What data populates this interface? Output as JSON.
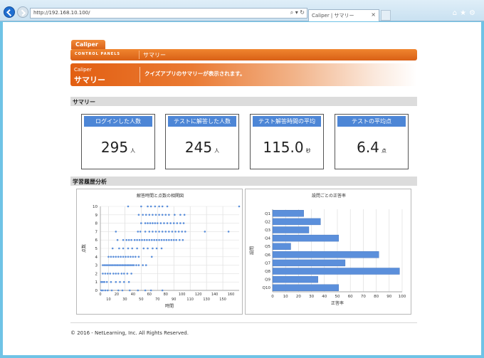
{
  "browser": {
    "address": "http://192.168.10.100/",
    "tab_title": "Caliper | サマリー"
  },
  "brand": "Caliper",
  "panel_bar": {
    "control_panels": "CONTROL PANELS",
    "current": "サマリー"
  },
  "hero": {
    "app": "Caliper",
    "title": "サマリー",
    "description": "クイズアプリのサマリーが表示されます。"
  },
  "sections": {
    "summary": "サマリー",
    "history": "学習履歴分析"
  },
  "cards": [
    {
      "label": "ログインした人数",
      "value": "295",
      "unit": "人"
    },
    {
      "label": "テストに解答した人数",
      "value": "245",
      "unit": "人"
    },
    {
      "label": "テスト解答時間の平均",
      "value": "115.0",
      "unit": "秒"
    },
    {
      "label": "テストの平均点",
      "value": "6.4",
      "unit": "点"
    }
  ],
  "colors": {
    "accent": "#e8731f",
    "series": "#5b8fdb",
    "card_head": "#4d86d6"
  },
  "chart_data": [
    {
      "type": "scatter",
      "title": "解答時間と点数の相関図",
      "xlabel": "時間",
      "ylabel": "点数",
      "xlim": [
        0,
        170
      ],
      "ylim": [
        0,
        10
      ],
      "x_ticks": [
        10,
        30,
        50,
        70,
        90,
        110,
        130,
        150
      ],
      "y_ticks": [
        0,
        1,
        2,
        3,
        4,
        5,
        6,
        7,
        8,
        9,
        10
      ],
      "x_tick_labels_secondary": [
        0,
        20,
        40,
        60,
        80,
        100,
        120,
        140,
        160
      ],
      "points": [
        [
          1,
          0
        ],
        [
          3,
          0
        ],
        [
          6,
          0
        ],
        [
          9,
          0
        ],
        [
          14,
          0
        ],
        [
          22,
          0
        ],
        [
          27,
          0
        ],
        [
          36,
          0
        ],
        [
          46,
          0
        ],
        [
          55,
          0
        ],
        [
          62,
          0
        ],
        [
          76,
          0
        ],
        [
          1,
          1
        ],
        [
          3,
          1
        ],
        [
          5,
          1
        ],
        [
          8,
          1
        ],
        [
          13,
          1
        ],
        [
          19,
          1
        ],
        [
          24,
          1
        ],
        [
          29,
          1
        ],
        [
          35,
          1
        ],
        [
          3,
          2
        ],
        [
          6,
          2
        ],
        [
          9,
          2
        ],
        [
          12,
          2
        ],
        [
          16,
          2
        ],
        [
          19,
          2
        ],
        [
          22,
          2
        ],
        [
          26,
          2
        ],
        [
          29,
          2
        ],
        [
          33,
          2
        ],
        [
          38,
          2
        ],
        [
          3,
          3
        ],
        [
          5,
          3
        ],
        [
          7,
          3
        ],
        [
          9,
          3
        ],
        [
          11,
          3
        ],
        [
          13,
          3
        ],
        [
          15,
          3
        ],
        [
          17,
          3
        ],
        [
          19,
          3
        ],
        [
          21,
          3
        ],
        [
          23,
          3
        ],
        [
          25,
          3
        ],
        [
          27,
          3
        ],
        [
          29,
          3
        ],
        [
          31,
          3
        ],
        [
          33,
          3
        ],
        [
          35,
          3
        ],
        [
          37,
          3
        ],
        [
          39,
          3
        ],
        [
          41,
          3
        ],
        [
          44,
          3
        ],
        [
          47,
          3
        ],
        [
          52,
          3
        ],
        [
          56,
          3
        ],
        [
          10,
          4
        ],
        [
          13,
          4
        ],
        [
          16,
          4
        ],
        [
          19,
          4
        ],
        [
          22,
          4
        ],
        [
          25,
          4
        ],
        [
          28,
          4
        ],
        [
          31,
          4
        ],
        [
          34,
          4
        ],
        [
          37,
          4
        ],
        [
          40,
          4
        ],
        [
          43,
          4
        ],
        [
          47,
          4
        ],
        [
          63,
          4
        ],
        [
          15,
          5
        ],
        [
          23,
          5
        ],
        [
          28,
          5
        ],
        [
          34,
          5
        ],
        [
          39,
          5
        ],
        [
          45,
          5
        ],
        [
          53,
          5
        ],
        [
          58,
          5
        ],
        [
          64,
          5
        ],
        [
          69,
          5
        ],
        [
          75,
          5
        ],
        [
          21,
          6
        ],
        [
          28,
          6
        ],
        [
          32,
          6
        ],
        [
          35,
          6
        ],
        [
          38,
          6
        ],
        [
          42,
          6
        ],
        [
          45,
          6
        ],
        [
          48,
          6
        ],
        [
          51,
          6
        ],
        [
          54,
          6
        ],
        [
          57,
          6
        ],
        [
          60,
          6
        ],
        [
          63,
          6
        ],
        [
          66,
          6
        ],
        [
          69,
          6
        ],
        [
          72,
          6
        ],
        [
          75,
          6
        ],
        [
          78,
          6
        ],
        [
          81,
          6
        ],
        [
          84,
          6
        ],
        [
          87,
          6
        ],
        [
          90,
          6
        ],
        [
          93,
          6
        ],
        [
          97,
          6
        ],
        [
          101,
          6
        ],
        [
          19,
          7
        ],
        [
          46,
          7
        ],
        [
          49,
          7
        ],
        [
          55,
          7
        ],
        [
          60,
          7
        ],
        [
          64,
          7
        ],
        [
          68,
          7
        ],
        [
          72,
          7
        ],
        [
          76,
          7
        ],
        [
          80,
          7
        ],
        [
          84,
          7
        ],
        [
          88,
          7
        ],
        [
          92,
          7
        ],
        [
          96,
          7
        ],
        [
          100,
          7
        ],
        [
          104,
          7
        ],
        [
          128,
          7
        ],
        [
          157,
          7
        ],
        [
          50,
          8
        ],
        [
          55,
          8
        ],
        [
          58,
          8
        ],
        [
          61,
          8
        ],
        [
          64,
          8
        ],
        [
          67,
          8
        ],
        [
          70,
          8
        ],
        [
          74,
          8
        ],
        [
          78,
          8
        ],
        [
          82,
          8
        ],
        [
          86,
          8
        ],
        [
          90,
          8
        ],
        [
          94,
          8
        ],
        [
          98,
          8
        ],
        [
          102,
          8
        ],
        [
          47,
          9
        ],
        [
          52,
          9
        ],
        [
          56,
          9
        ],
        [
          60,
          9
        ],
        [
          64,
          9
        ],
        [
          68,
          9
        ],
        [
          72,
          9
        ],
        [
          76,
          9
        ],
        [
          80,
          9
        ],
        [
          84,
          9
        ],
        [
          91,
          9
        ],
        [
          98,
          9
        ],
        [
          103,
          9
        ],
        [
          34,
          10
        ],
        [
          50,
          10
        ],
        [
          58,
          10
        ],
        [
          62,
          10
        ],
        [
          67,
          10
        ],
        [
          72,
          10
        ],
        [
          76,
          10
        ],
        [
          82,
          10
        ],
        [
          170,
          10
        ]
      ]
    },
    {
      "type": "bar",
      "orientation": "horizontal",
      "title": "設問ごとの正答率",
      "xlabel": "正答率",
      "ylabel": "設問",
      "xlim": [
        0,
        100
      ],
      "x_ticks": [
        0,
        10,
        20,
        30,
        40,
        50,
        60,
        70,
        80,
        90,
        100
      ],
      "categories": [
        "Q1",
        "Q2",
        "Q3",
        "Q4",
        "Q5",
        "Q6",
        "Q7",
        "Q8",
        "Q9",
        "Q10"
      ],
      "values": [
        24,
        37,
        28,
        51,
        14,
        82,
        56,
        98,
        35,
        51
      ]
    }
  ],
  "footer": "© 2016 - NetLearning, Inc. All Rights Reserved."
}
